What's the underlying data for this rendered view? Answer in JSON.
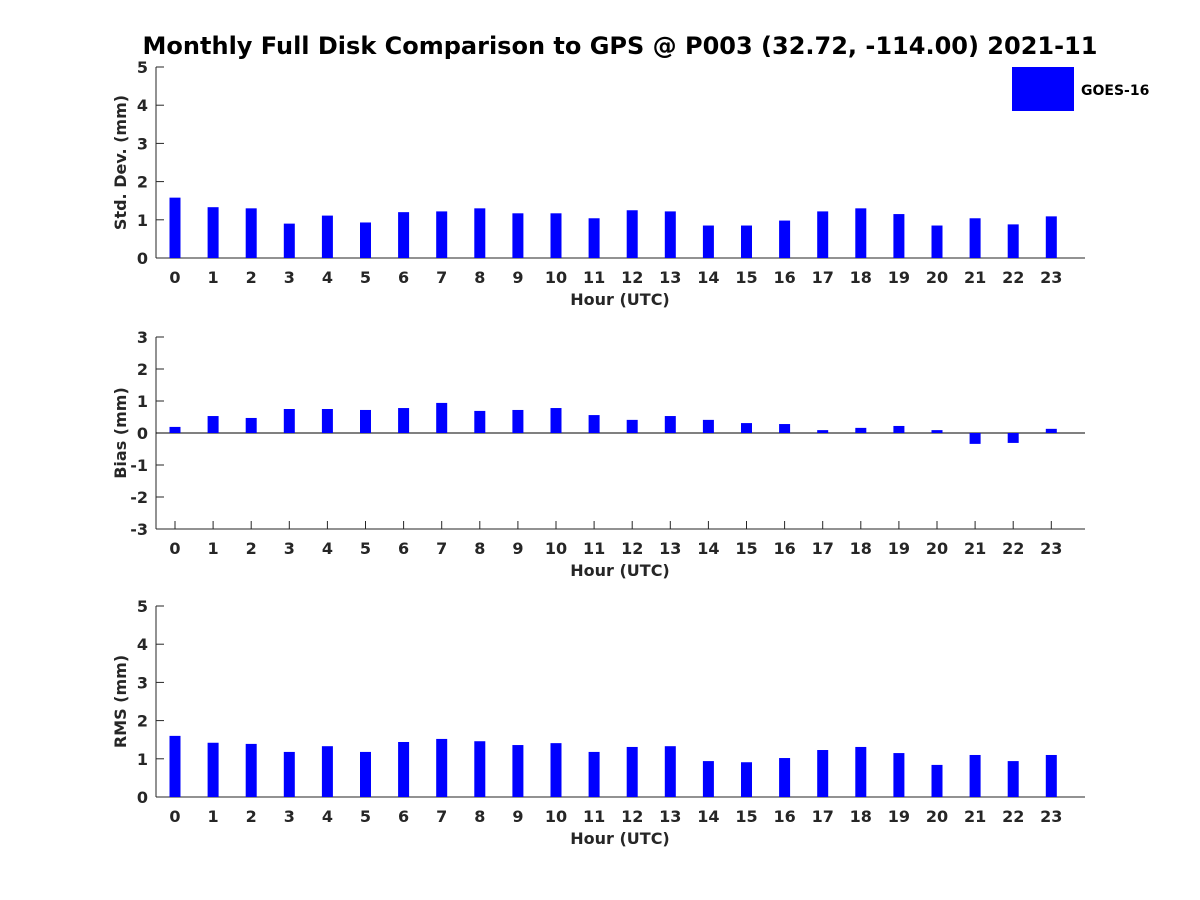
{
  "title": "Monthly Full Disk Comparison to GPS @ P003 (32.72, -114.00) 2021-11",
  "legend": {
    "label": "GOES-16",
    "color": "#0000ff",
    "position": "top-right"
  },
  "chart_data": [
    {
      "type": "bar",
      "xlabel": "Hour (UTC)",
      "ylabel": "Std. Dev. (mm)",
      "ylim": [
        0,
        5
      ],
      "yticks": [
        0,
        1,
        2,
        3,
        4,
        5
      ],
      "categories": [
        "0",
        "1",
        "2",
        "3",
        "4",
        "5",
        "6",
        "7",
        "8",
        "9",
        "10",
        "11",
        "12",
        "13",
        "14",
        "15",
        "16",
        "17",
        "18",
        "19",
        "20",
        "21",
        "22",
        "23"
      ],
      "series": [
        {
          "name": "GOES-16",
          "color": "#0000ff",
          "values": [
            1.58,
            1.33,
            1.3,
            0.9,
            1.11,
            0.93,
            1.2,
            1.22,
            1.3,
            1.17,
            1.17,
            1.04,
            1.25,
            1.22,
            0.85,
            0.85,
            0.98,
            1.22,
            1.3,
            1.15,
            0.85,
            1.04,
            0.88,
            1.09
          ]
        }
      ]
    },
    {
      "type": "bar",
      "xlabel": "Hour (UTC)",
      "ylabel": "Bias (mm)",
      "ylim": [
        -3,
        3
      ],
      "yticks": [
        -3,
        -2,
        -1,
        0,
        1,
        2,
        3
      ],
      "categories": [
        "0",
        "1",
        "2",
        "3",
        "4",
        "5",
        "6",
        "7",
        "8",
        "9",
        "10",
        "11",
        "12",
        "13",
        "14",
        "15",
        "16",
        "17",
        "18",
        "19",
        "20",
        "21",
        "22",
        "23"
      ],
      "series": [
        {
          "name": "GOES-16",
          "color": "#0000ff",
          "values": [
            0.19,
            0.53,
            0.47,
            0.75,
            0.75,
            0.72,
            0.78,
            0.94,
            0.69,
            0.72,
            0.78,
            0.56,
            0.41,
            0.53,
            0.41,
            0.31,
            0.28,
            0.09,
            0.16,
            0.22,
            0.09,
            -0.34,
            -0.31,
            0.13
          ]
        }
      ]
    },
    {
      "type": "bar",
      "xlabel": "Hour (UTC)",
      "ylabel": "RMS (mm)",
      "ylim": [
        0,
        5
      ],
      "yticks": [
        0,
        1,
        2,
        3,
        4,
        5
      ],
      "categories": [
        "0",
        "1",
        "2",
        "3",
        "4",
        "5",
        "6",
        "7",
        "8",
        "9",
        "10",
        "11",
        "12",
        "13",
        "14",
        "15",
        "16",
        "17",
        "18",
        "19",
        "20",
        "21",
        "22",
        "23"
      ],
      "series": [
        {
          "name": "GOES-16",
          "color": "#0000ff",
          "values": [
            1.6,
            1.42,
            1.39,
            1.18,
            1.33,
            1.18,
            1.44,
            1.52,
            1.46,
            1.36,
            1.41,
            1.18,
            1.31,
            1.33,
            0.94,
            0.91,
            1.02,
            1.23,
            1.31,
            1.15,
            0.84,
            1.1,
            0.94,
            1.1
          ]
        }
      ]
    }
  ]
}
